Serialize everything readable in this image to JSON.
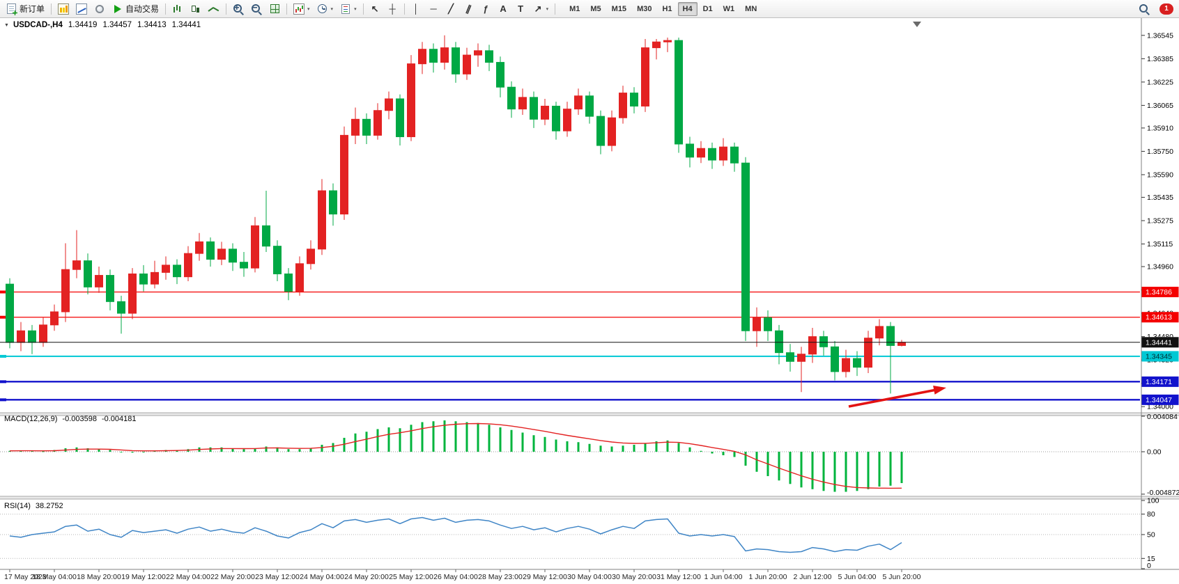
{
  "toolbar": {
    "items": [
      {
        "name": "new-order-button",
        "icon": "doc",
        "label": "新订单"
      },
      {
        "sep": true
      },
      {
        "name": "charts-window-button",
        "icon": "chart-yellow"
      },
      {
        "name": "data-window-button",
        "icon": "chart-blue"
      },
      {
        "name": "market-watch-button",
        "icon": "circle"
      },
      {
        "name": "auto-trading-button",
        "icon": "play",
        "label": "自动交易"
      },
      {
        "sep": true
      },
      {
        "name": "bar-chart-mode-button",
        "icon": "bars"
      },
      {
        "name": "candlestick-mode-button",
        "icon": "candles"
      },
      {
        "name": "line-chart-mode-button",
        "icon": "linechart"
      },
      {
        "sep": true
      },
      {
        "name": "zoom-in-button",
        "icon": "zoom-in"
      },
      {
        "name": "zoom-out-button",
        "icon": "zoom-out"
      },
      {
        "name": "tile-windows-button",
        "icon": "tile"
      },
      {
        "sep": true
      },
      {
        "name": "indicators-button",
        "icon": "indicator",
        "dropdown": true
      },
      {
        "name": "periods-button",
        "icon": "clock",
        "dropdown": true
      },
      {
        "name": "templates-button",
        "icon": "template",
        "dropdown": true
      },
      {
        "sep": true
      },
      {
        "name": "cursor-button",
        "glyph": "↖"
      },
      {
        "name": "crosshair-button",
        "glyph": "┼"
      },
      {
        "sep": true
      },
      {
        "name": "vertical-line-button",
        "glyph": "│"
      },
      {
        "name": "horizontal-line-button",
        "glyph": "─"
      },
      {
        "name": "trendline-button",
        "glyph": "╱"
      },
      {
        "name": "equidistant-channel-button",
        "glyph": "∥",
        "tilt": true
      },
      {
        "name": "fibonacci-button",
        "glyph": "ƒ"
      },
      {
        "name": "text-button",
        "glyph": "A"
      },
      {
        "name": "text-label-button",
        "glyph": "T"
      },
      {
        "name": "arrows-button",
        "glyph": "↗",
        "dropdown": true
      },
      {
        "sep": true
      }
    ],
    "timeframes": [
      "M1",
      "M5",
      "M15",
      "M30",
      "H1",
      "H4",
      "D1",
      "W1",
      "MN"
    ],
    "active_timeframe": "H4",
    "notification_count": "1"
  },
  "chart": {
    "header": {
      "symbol": "USDCAD-,H4",
      "open": "1.34419",
      "high": "1.34457",
      "low": "1.34413",
      "close": "1.34441"
    },
    "hlines": [
      {
        "price": 1.34786,
        "label": "1.34786",
        "color": "#f40000",
        "width": 1.2,
        "text_color": "#ffffff"
      },
      {
        "price": 1.34613,
        "label": "1.34613",
        "color": "#f40000",
        "width": 1.2,
        "text_color": "#ffffff"
      },
      {
        "price": 1.34441,
        "label": "1.34441",
        "color": "#111111",
        "width": 1,
        "text_color": "#ffffff",
        "role": "current-price"
      },
      {
        "price": 1.34345,
        "label": "1.34345",
        "color": "#00c8d4",
        "width": 2,
        "text_color": "#00282c"
      },
      {
        "price": 1.34171,
        "label": "1.34171",
        "color": "#1212cc",
        "width": 2.4,
        "text_color": "#ffffff"
      },
      {
        "price": 1.34047,
        "label": "1.34047",
        "color": "#1212cc",
        "width": 2.4,
        "text_color": "#ffffff"
      }
    ],
    "colors": {
      "up": "#e32222",
      "down": "#00a844",
      "macd_hist": "#00b43c",
      "macd_signal": "#e32222",
      "rsi": "#3f85c6",
      "arrow": "#e31212",
      "axis_text": "#000000",
      "time_text": "#222222"
    }
  },
  "indicators": {
    "macd": {
      "name": "MACD(12,26,9)",
      "value": "-0.003598",
      "signal_value": "-0.004181",
      "axis_labels": [
        "0.004084",
        "0.00",
        "-0.004872"
      ]
    },
    "rsi": {
      "name": "RSI(14)",
      "value": "38.2752",
      "axis_labels": [
        "100",
        "80",
        "50",
        "15",
        "0"
      ]
    }
  },
  "chart_data": [
    {
      "type": "candlestick",
      "title": "USDCAD H4",
      "color_convention": {
        "up": "red",
        "down": "green"
      },
      "y_ticks": [
        "1.36545",
        "1.36385",
        "1.36225",
        "1.36065",
        "1.35910",
        "1.35750",
        "1.35590",
        "1.35435",
        "1.35275",
        "1.35115",
        "1.34960",
        "1.34800",
        "1.34640",
        "1.34480",
        "1.34320",
        "1.34160",
        "1.34000"
      ],
      "ylim": [
        1.34,
        1.36545
      ],
      "x_labels": [
        "17 May 2023",
        "18 May 04:00",
        "18 May 20:00",
        "19 May 12:00",
        "22 May 04:00",
        "22 May 20:00",
        "23 May 12:00",
        "24 May 04:00",
        "24 May 20:00",
        "25 May 12:00",
        "26 May 04:00",
        "28 May 23:00",
        "29 May 12:00",
        "30 May 04:00",
        "30 May 20:00",
        "31 May 12:00",
        "1 Jun 04:00",
        "1 Jun 20:00",
        "2 Jun 12:00",
        "5 Jun 04:00",
        "5 Jun 20:00"
      ],
      "x_label_every": 4,
      "ohlc": [
        [
          1.3484,
          1.3488,
          1.344,
          1.3444
        ],
        [
          1.3444,
          1.3458,
          1.3438,
          1.3452
        ],
        [
          1.3452,
          1.3456,
          1.3436,
          1.3444
        ],
        [
          1.3444,
          1.3461,
          1.3441,
          1.3456
        ],
        [
          1.3456,
          1.347,
          1.3452,
          1.3465
        ],
        [
          1.3465,
          1.3512,
          1.3458,
          1.3494
        ],
        [
          1.3494,
          1.3521,
          1.3488,
          1.35
        ],
        [
          1.35,
          1.3505,
          1.3477,
          1.3482
        ],
        [
          1.3482,
          1.3496,
          1.3478,
          1.349
        ],
        [
          1.349,
          1.3494,
          1.3466,
          1.3472
        ],
        [
          1.3472,
          1.3476,
          1.345,
          1.3464
        ],
        [
          1.3464,
          1.3495,
          1.346,
          1.3491
        ],
        [
          1.3491,
          1.3497,
          1.3479,
          1.3484
        ],
        [
          1.3484,
          1.35,
          1.3481,
          1.3492
        ],
        [
          1.3492,
          1.3503,
          1.3487,
          1.3497
        ],
        [
          1.3497,
          1.3501,
          1.3484,
          1.3489
        ],
        [
          1.3489,
          1.351,
          1.3486,
          1.3505
        ],
        [
          1.3505,
          1.3519,
          1.35,
          1.3513
        ],
        [
          1.3513,
          1.3516,
          1.3496,
          1.3501
        ],
        [
          1.3501,
          1.3513,
          1.3497,
          1.3508
        ],
        [
          1.3508,
          1.3512,
          1.3493,
          1.3499
        ],
        [
          1.3499,
          1.3506,
          1.3489,
          1.3495
        ],
        [
          1.3495,
          1.353,
          1.3492,
          1.3524
        ],
        [
          1.3524,
          1.3548,
          1.3506,
          1.351
        ],
        [
          1.351,
          1.3514,
          1.3486,
          1.3491
        ],
        [
          1.3491,
          1.3495,
          1.3473,
          1.3479
        ],
        [
          1.3479,
          1.3503,
          1.3476,
          1.3498
        ],
        [
          1.3498,
          1.3514,
          1.3494,
          1.3508
        ],
        [
          1.3508,
          1.3556,
          1.3504,
          1.3548
        ],
        [
          1.3548,
          1.3553,
          1.3524,
          1.3532
        ],
        [
          1.3532,
          1.3592,
          1.3528,
          1.3586
        ],
        [
          1.3586,
          1.3605,
          1.358,
          1.3597
        ],
        [
          1.3597,
          1.3601,
          1.358,
          1.3586
        ],
        [
          1.3586,
          1.3608,
          1.3583,
          1.3603
        ],
        [
          1.3603,
          1.3616,
          1.3597,
          1.3611
        ],
        [
          1.3611,
          1.3614,
          1.3579,
          1.3585
        ],
        [
          1.3585,
          1.3641,
          1.3582,
          1.3635
        ],
        [
          1.3635,
          1.365,
          1.3628,
          1.3645
        ],
        [
          1.3645,
          1.3649,
          1.3629,
          1.3636
        ],
        [
          1.3636,
          1.36545,
          1.3631,
          1.3646
        ],
        [
          1.3646,
          1.365,
          1.3622,
          1.3628
        ],
        [
          1.3628,
          1.3646,
          1.3624,
          1.3641
        ],
        [
          1.3641,
          1.3649,
          1.3633,
          1.3644
        ],
        [
          1.3644,
          1.3648,
          1.363,
          1.3636
        ],
        [
          1.3636,
          1.364,
          1.3612,
          1.3619
        ],
        [
          1.3619,
          1.3623,
          1.3598,
          1.3604
        ],
        [
          1.3604,
          1.3618,
          1.36,
          1.3612
        ],
        [
          1.3612,
          1.3616,
          1.3591,
          1.3597
        ],
        [
          1.3597,
          1.3611,
          1.3593,
          1.3606
        ],
        [
          1.3606,
          1.3609,
          1.3583,
          1.3589
        ],
        [
          1.3589,
          1.3609,
          1.3585,
          1.3604
        ],
        [
          1.3604,
          1.3618,
          1.36,
          1.3613
        ],
        [
          1.3613,
          1.3616,
          1.3594,
          1.3599
        ],
        [
          1.3599,
          1.3603,
          1.3573,
          1.3579
        ],
        [
          1.3579,
          1.3603,
          1.3575,
          1.3598
        ],
        [
          1.3598,
          1.362,
          1.3594,
          1.3615
        ],
        [
          1.3615,
          1.3619,
          1.3601,
          1.3606
        ],
        [
          1.3606,
          1.3652,
          1.3602,
          1.3646
        ],
        [
          1.3646,
          1.3652,
          1.3638,
          1.365
        ],
        [
          1.365,
          1.3653,
          1.3643,
          1.3651
        ],
        [
          1.3651,
          1.3653,
          1.3574,
          1.358
        ],
        [
          1.358,
          1.3585,
          1.3564,
          1.3571
        ],
        [
          1.3571,
          1.3582,
          1.3567,
          1.3577
        ],
        [
          1.3577,
          1.3581,
          1.3563,
          1.3569
        ],
        [
          1.3569,
          1.3584,
          1.3565,
          1.3578
        ],
        [
          1.3578,
          1.3581,
          1.3561,
          1.3567
        ],
        [
          1.3567,
          1.3571,
          1.3445,
          1.3452
        ],
        [
          1.3452,
          1.3468,
          1.3441,
          1.3461
        ],
        [
          1.3461,
          1.3466,
          1.3445,
          1.3452
        ],
        [
          1.3452,
          1.3456,
          1.3429,
          1.3437
        ],
        [
          1.3437,
          1.3443,
          1.3424,
          1.3431
        ],
        [
          1.3431,
          1.3441,
          1.341,
          1.3436
        ],
        [
          1.3436,
          1.3454,
          1.343,
          1.3448
        ],
        [
          1.3448,
          1.3452,
          1.3435,
          1.3441
        ],
        [
          1.3441,
          1.3445,
          1.3418,
          1.3424
        ],
        [
          1.3424,
          1.3439,
          1.342,
          1.3433
        ],
        [
          1.3433,
          1.3438,
          1.3421,
          1.3427
        ],
        [
          1.3427,
          1.3452,
          1.3423,
          1.3447
        ],
        [
          1.3447,
          1.346,
          1.3442,
          1.3455
        ],
        [
          1.3455,
          1.3458,
          1.3409,
          1.34419
        ],
        [
          1.34419,
          1.34457,
          1.34413,
          1.34441
        ]
      ]
    },
    {
      "type": "bar",
      "name": "MACD(12,26,9)",
      "current_value": -0.003598,
      "current_signal": -0.004181,
      "ylim": [
        -0.004872,
        0.004084
      ],
      "values": [
        0.0001,
        0.00015,
        0.0001,
        5e-05,
        0.0002,
        0.0004,
        0.0005,
        0.0004,
        0.0003,
        0.0002,
        0.0,
        -0.0001,
        0.0,
        0.0001,
        0.0002,
        0.0002,
        0.0003,
        0.0005,
        0.0005,
        0.0005,
        0.0004,
        0.0003,
        0.0004,
        0.0006,
        0.0005,
        0.0003,
        0.0003,
        0.0004,
        0.0008,
        0.001,
        0.0016,
        0.0021,
        0.0023,
        0.0026,
        0.0028,
        0.0027,
        0.0031,
        0.0034,
        0.0035,
        0.0036,
        0.0035,
        0.0034,
        0.0033,
        0.0031,
        0.0028,
        0.0025,
        0.0022,
        0.0019,
        0.0017,
        0.0014,
        0.0012,
        0.0011,
        0.0009,
        0.0007,
        0.0006,
        0.0007,
        0.0008,
        0.001,
        0.0012,
        0.0013,
        0.001,
        0.0005,
        0.0001,
        -0.0002,
        -0.0004,
        -0.0006,
        -0.0016,
        -0.0023,
        -0.0028,
        -0.0033,
        -0.0037,
        -0.0041,
        -0.0043,
        -0.0045,
        -0.0046,
        -0.0046,
        -0.0045,
        -0.0043,
        -0.004,
        -0.0039,
        -0.0036
      ],
      "signal": [
        0.0001,
        0.00011,
        0.00011,
        0.0001,
        0.00012,
        0.00019,
        0.00027,
        0.0003,
        0.0003,
        0.00028,
        0.00021,
        0.00013,
        0.0001,
        0.0001,
        0.00012,
        0.00014,
        0.00018,
        0.00026,
        0.00032,
        0.00037,
        0.00037,
        0.00036,
        0.00037,
        0.00043,
        0.00044,
        0.00041,
        0.00038,
        0.00039,
        0.00049,
        0.00062,
        0.00086,
        0.00117,
        0.00145,
        0.00174,
        0.00201,
        0.00218,
        0.00241,
        0.00266,
        0.00287,
        0.00305,
        0.00316,
        0.00322,
        0.00324,
        0.00321,
        0.0031,
        0.00295,
        0.00277,
        0.00255,
        0.00234,
        0.0021,
        0.00188,
        0.00168,
        0.00149,
        0.00129,
        0.00112,
        0.00101,
        0.00096,
        0.00097,
        0.00103,
        0.0011,
        0.00107,
        0.00093,
        0.00072,
        0.00049,
        0.00027,
        5e-05,
        -0.00036,
        -0.00093,
        -0.0014,
        -0.00188,
        -0.00233,
        -0.00277,
        -0.00316,
        -0.00349,
        -0.00377,
        -0.00398,
        -0.00411,
        -0.00416,
        -0.00418,
        -0.00419,
        -0.00418
      ]
    },
    {
      "type": "line",
      "name": "RSI(14)",
      "current_value": 38.2752,
      "ylim": [
        0,
        100
      ],
      "levels": [
        80,
        50,
        15
      ],
      "values": [
        48,
        46,
        50,
        52,
        54,
        62,
        64,
        55,
        58,
        50,
        46,
        56,
        53,
        55,
        57,
        52,
        58,
        61,
        55,
        58,
        54,
        52,
        60,
        55,
        48,
        45,
        53,
        57,
        66,
        60,
        70,
        72,
        68,
        71,
        73,
        66,
        73,
        75,
        71,
        74,
        68,
        71,
        72,
        70,
        64,
        59,
        62,
        57,
        60,
        54,
        59,
        62,
        58,
        51,
        57,
        62,
        59,
        70,
        72,
        73,
        52,
        48,
        50,
        48,
        50,
        47,
        26,
        29,
        28,
        25,
        24,
        25,
        31,
        29,
        25,
        28,
        27,
        33,
        36,
        28,
        38.2752
      ]
    }
  ]
}
